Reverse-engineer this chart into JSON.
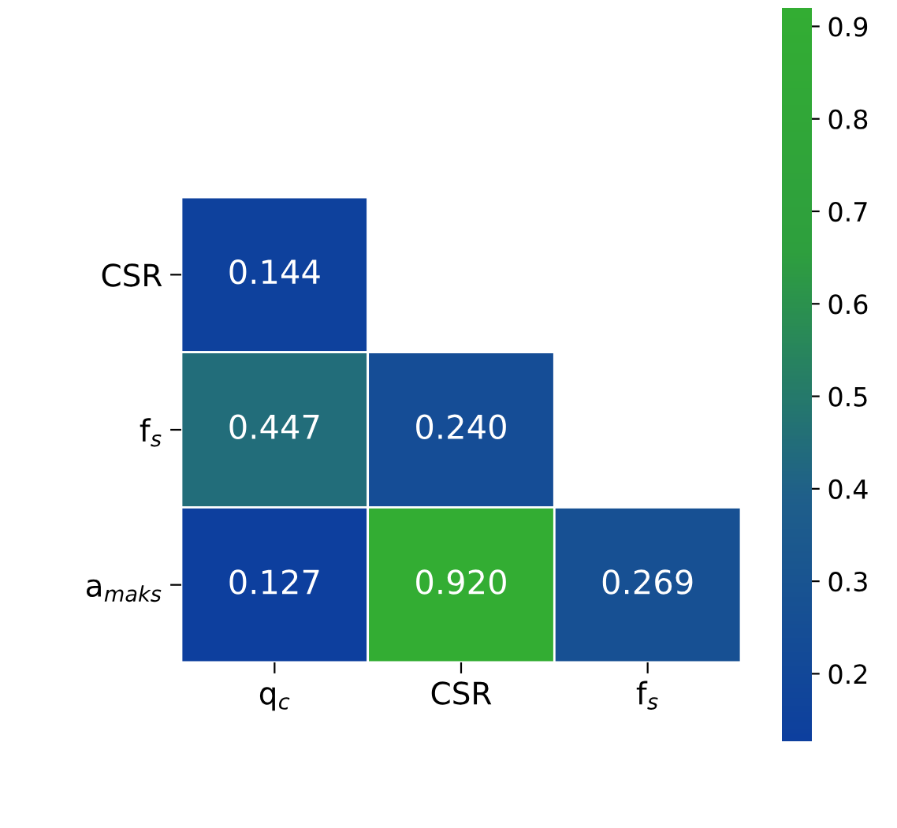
{
  "chart_data": {
    "type": "heatmap",
    "categories": [
      "q$_{c}$",
      "CSR",
      "f$_{s}$"
    ],
    "y_categories": [
      "CSR",
      "f$_{s}$",
      "a$_{maks}$"
    ],
    "cells": [
      [
        0.144,
        null,
        null
      ],
      [
        0.447,
        0.24,
        null
      ],
      [
        0.127,
        0.92,
        0.269
      ]
    ],
    "cell_labels": [
      [
        "0.144",
        null,
        null
      ],
      [
        "0.447",
        "0.240",
        null
      ],
      [
        "0.127",
        "0.920",
        "0.269"
      ]
    ],
    "clim": [
      0.127,
      0.92
    ],
    "cticks": [
      0.2,
      0.3,
      0.4,
      0.5,
      0.6,
      0.7,
      0.8,
      0.9
    ],
    "data_labels": true
  }
}
